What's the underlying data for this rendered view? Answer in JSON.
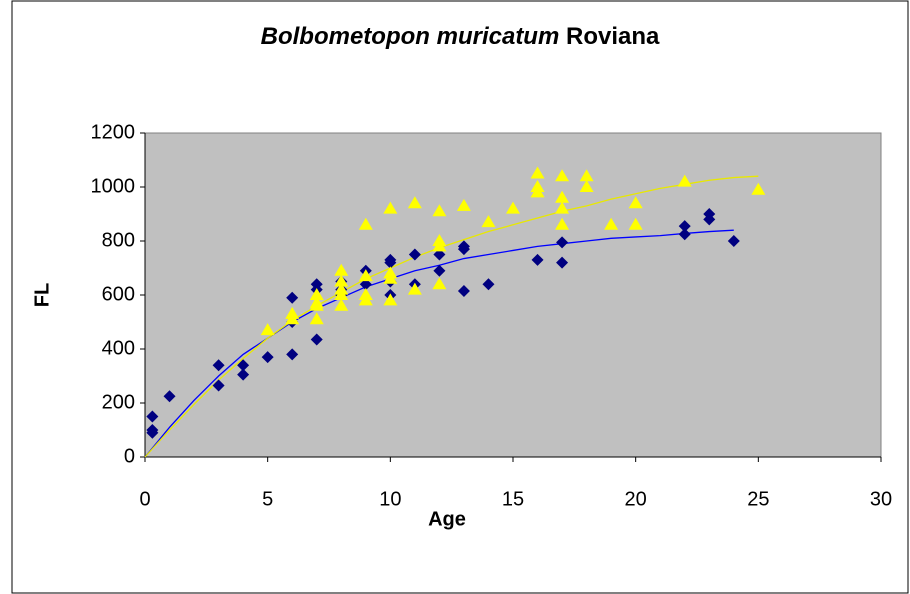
{
  "chart_data": {
    "type": "scatter",
    "title": [
      "Bolbometopon muricatum",
      "Roviana"
    ],
    "xlabel": "Age",
    "ylabel": "FL",
    "xlim": [
      0,
      30
    ],
    "xticks": [
      0,
      5,
      10,
      15,
      20,
      25,
      30
    ],
    "ylim": [
      0,
      1200
    ],
    "yticks": [
      0,
      200,
      400,
      600,
      800,
      1000,
      1200
    ],
    "background": "#c0c0c0",
    "series": [
      {
        "type": "scatter",
        "marker": "diamond",
        "color": "#000080",
        "x": [
          0.3,
          0.3,
          0.3,
          1,
          3,
          3,
          4,
          4,
          5,
          6,
          6,
          6,
          7,
          7,
          7,
          8,
          8,
          8,
          9,
          9,
          10,
          10,
          10,
          10,
          11,
          11,
          12,
          12,
          13,
          13,
          13,
          14,
          16,
          17,
          17,
          22,
          22,
          23,
          23,
          24
        ],
        "values": [
          90,
          100,
          150,
          225,
          340,
          265,
          340,
          305,
          370,
          590,
          380,
          500,
          640,
          620,
          435,
          650,
          620,
          600,
          690,
          640,
          720,
          730,
          600,
          650,
          750,
          640,
          750,
          690,
          780,
          770,
          615,
          640,
          730,
          795,
          720,
          855,
          825,
          900,
          880,
          800
        ]
      },
      {
        "type": "scatter",
        "marker": "triangle",
        "color": "#ffff00",
        "x": [
          5,
          6,
          6,
          7,
          7,
          7,
          7,
          8,
          8,
          8,
          8,
          8,
          9,
          9,
          9,
          9,
          10,
          10,
          10,
          10,
          11,
          11,
          12,
          12,
          12,
          12,
          13,
          14,
          15,
          16,
          16,
          16,
          17,
          17,
          17,
          17,
          18,
          18,
          19,
          20,
          20,
          22,
          25
        ],
        "values": [
          470,
          530,
          510,
          600,
          570,
          510,
          560,
          690,
          650,
          600,
          560,
          620,
          860,
          670,
          600,
          580,
          920,
          680,
          660,
          580,
          940,
          620,
          910,
          800,
          780,
          640,
          930,
          870,
          920,
          1050,
          1000,
          980,
          1040,
          960,
          920,
          860,
          1040,
          1000,
          860,
          940,
          860,
          1020,
          990
        ]
      },
      {
        "type": "line",
        "color": "#0000ff",
        "x": [
          0,
          1,
          2,
          3,
          4,
          5,
          6,
          7,
          8,
          9,
          10,
          11,
          12,
          13,
          14,
          15,
          16,
          17,
          18,
          19,
          20,
          21,
          22,
          23,
          24
        ],
        "values": [
          0,
          110,
          210,
          300,
          380,
          440,
          500,
          550,
          590,
          630,
          660,
          690,
          710,
          735,
          750,
          765,
          780,
          790,
          800,
          810,
          815,
          820,
          828,
          835,
          840
        ]
      },
      {
        "type": "line",
        "color": "#e8e800",
        "x": [
          0,
          1,
          2,
          3,
          4,
          5,
          6,
          7,
          8,
          9,
          10,
          11,
          12,
          13,
          14,
          15,
          16,
          17,
          18,
          19,
          20,
          21,
          22,
          23,
          24,
          25
        ],
        "values": [
          0,
          100,
          195,
          285,
          365,
          440,
          505,
          560,
          610,
          660,
          700,
          740,
          775,
          805,
          835,
          860,
          885,
          910,
          930,
          955,
          975,
          995,
          1010,
          1025,
          1035,
          1040
        ]
      }
    ]
  }
}
